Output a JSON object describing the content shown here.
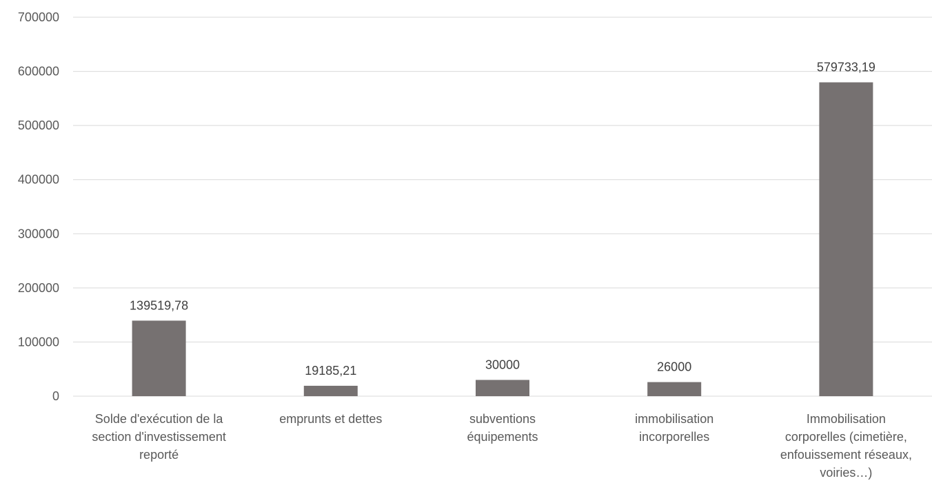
{
  "chart_data": {
    "type": "bar",
    "categories": [
      [
        "Solde d'exécution de la",
        "section d'investissement",
        "reporté"
      ],
      [
        "emprunts et dettes"
      ],
      [
        "subventions",
        "équipements"
      ],
      [
        "immobilisation",
        "incorporelles"
      ],
      [
        "Immobilisation",
        "corporelles (cimetière,",
        "enfouissement réseaux,",
        "voiries…)"
      ]
    ],
    "values": [
      139519.78,
      19185.21,
      30000,
      26000,
      579733.19
    ],
    "data_labels": [
      "139519,78",
      "19185,21",
      "30000",
      "26000",
      "579733,19"
    ],
    "y_ticks": [
      "0",
      "100000",
      "200000",
      "300000",
      "400000",
      "500000",
      "600000",
      "700000"
    ],
    "ylim": [
      0,
      700000
    ],
    "grid": true,
    "legend": false,
    "bar_color": "#767171",
    "grid_color": "#d9d9d9"
  }
}
